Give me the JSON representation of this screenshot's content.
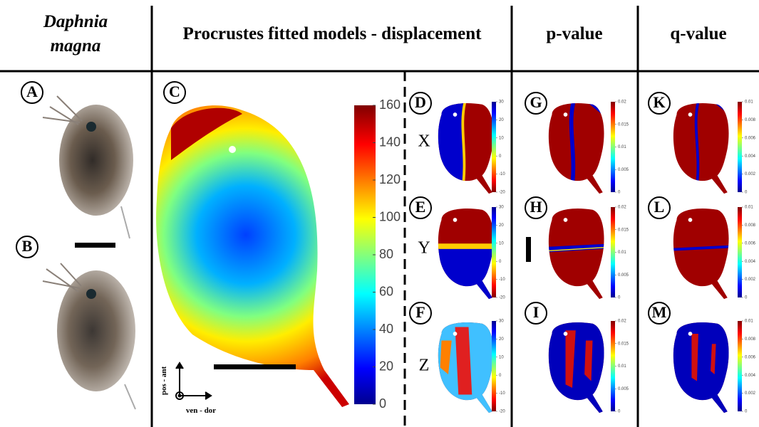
{
  "species": [
    "Daphnia",
    "magna"
  ],
  "headers": [
    "Procrustes fitted models - displacement",
    "p-value",
    "q-value"
  ],
  "letters": [
    "A",
    "B",
    "C",
    "D",
    "E",
    "F",
    "G",
    "H",
    "I",
    "K",
    "L",
    "M"
  ],
  "axes": [
    "X",
    "Y",
    "Z"
  ],
  "orientation": [
    "pos - ant",
    "ven - dor"
  ],
  "displacement_ticks": [
    0,
    20,
    40,
    60,
    80,
    100,
    120,
    140,
    160
  ],
  "small_displacement_ticks": [
    -20,
    -10,
    0,
    10,
    20,
    30
  ],
  "p_ticks": [
    0,
    0.005,
    0.01,
    0.015,
    0.02
  ],
  "q_ticks": [
    0,
    0.002,
    0.004,
    0.006,
    0.008,
    0.01
  ]
}
